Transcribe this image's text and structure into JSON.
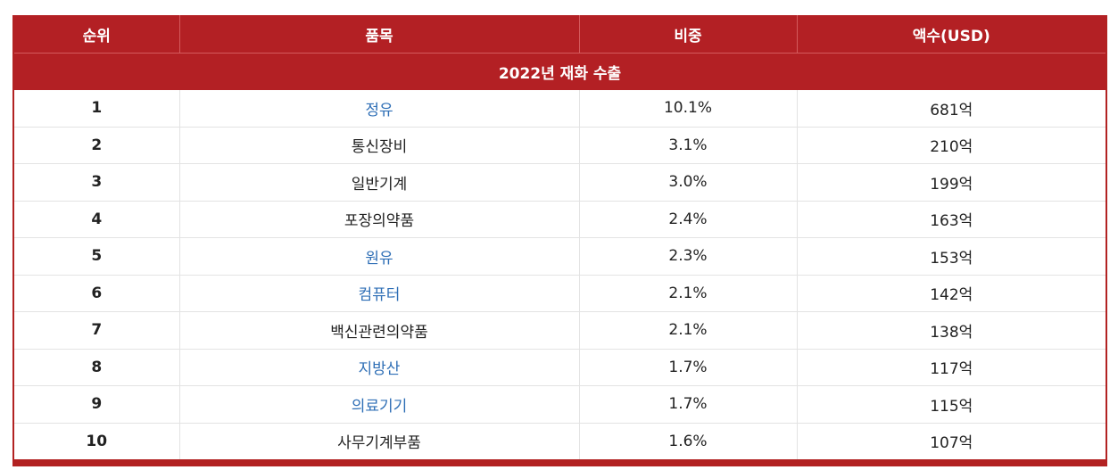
{
  "table": {
    "headers": {
      "rank": "순위",
      "item": "품목",
      "share": "비중",
      "amount": "액수(USD)"
    },
    "section_title": "2022년 재화 수출",
    "rows": [
      {
        "rank": "1",
        "item": "정유",
        "share": "10.1%",
        "amount": "681억",
        "linked": true
      },
      {
        "rank": "2",
        "item": "통신장비",
        "share": "3.1%",
        "amount": "210억",
        "linked": false
      },
      {
        "rank": "3",
        "item": "일반기계",
        "share": "3.0%",
        "amount": "199억",
        "linked": false
      },
      {
        "rank": "4",
        "item": "포장의약품",
        "share": "2.4%",
        "amount": "163억",
        "linked": false
      },
      {
        "rank": "5",
        "item": "원유",
        "share": "2.3%",
        "amount": "153억",
        "linked": true
      },
      {
        "rank": "6",
        "item": "컴퓨터",
        "share": "2.1%",
        "amount": "142억",
        "linked": true
      },
      {
        "rank": "7",
        "item": "백신관련의약품",
        "share": "2.1%",
        "amount": "138억",
        "linked": false
      },
      {
        "rank": "8",
        "item": "지방산",
        "share": "1.7%",
        "amount": "117억",
        "linked": true
      },
      {
        "rank": "9",
        "item": "의료기기",
        "share": "1.7%",
        "amount": "115억",
        "linked": true
      },
      {
        "rank": "10",
        "item": "사무기계부품",
        "share": "1.6%",
        "amount": "107억",
        "linked": false
      }
    ]
  },
  "colors": {
    "header_bg": "#b32024",
    "header_text": "#ffffff",
    "link": "#2f6fb6",
    "text": "#222222",
    "grid": "#e3e3e3"
  }
}
